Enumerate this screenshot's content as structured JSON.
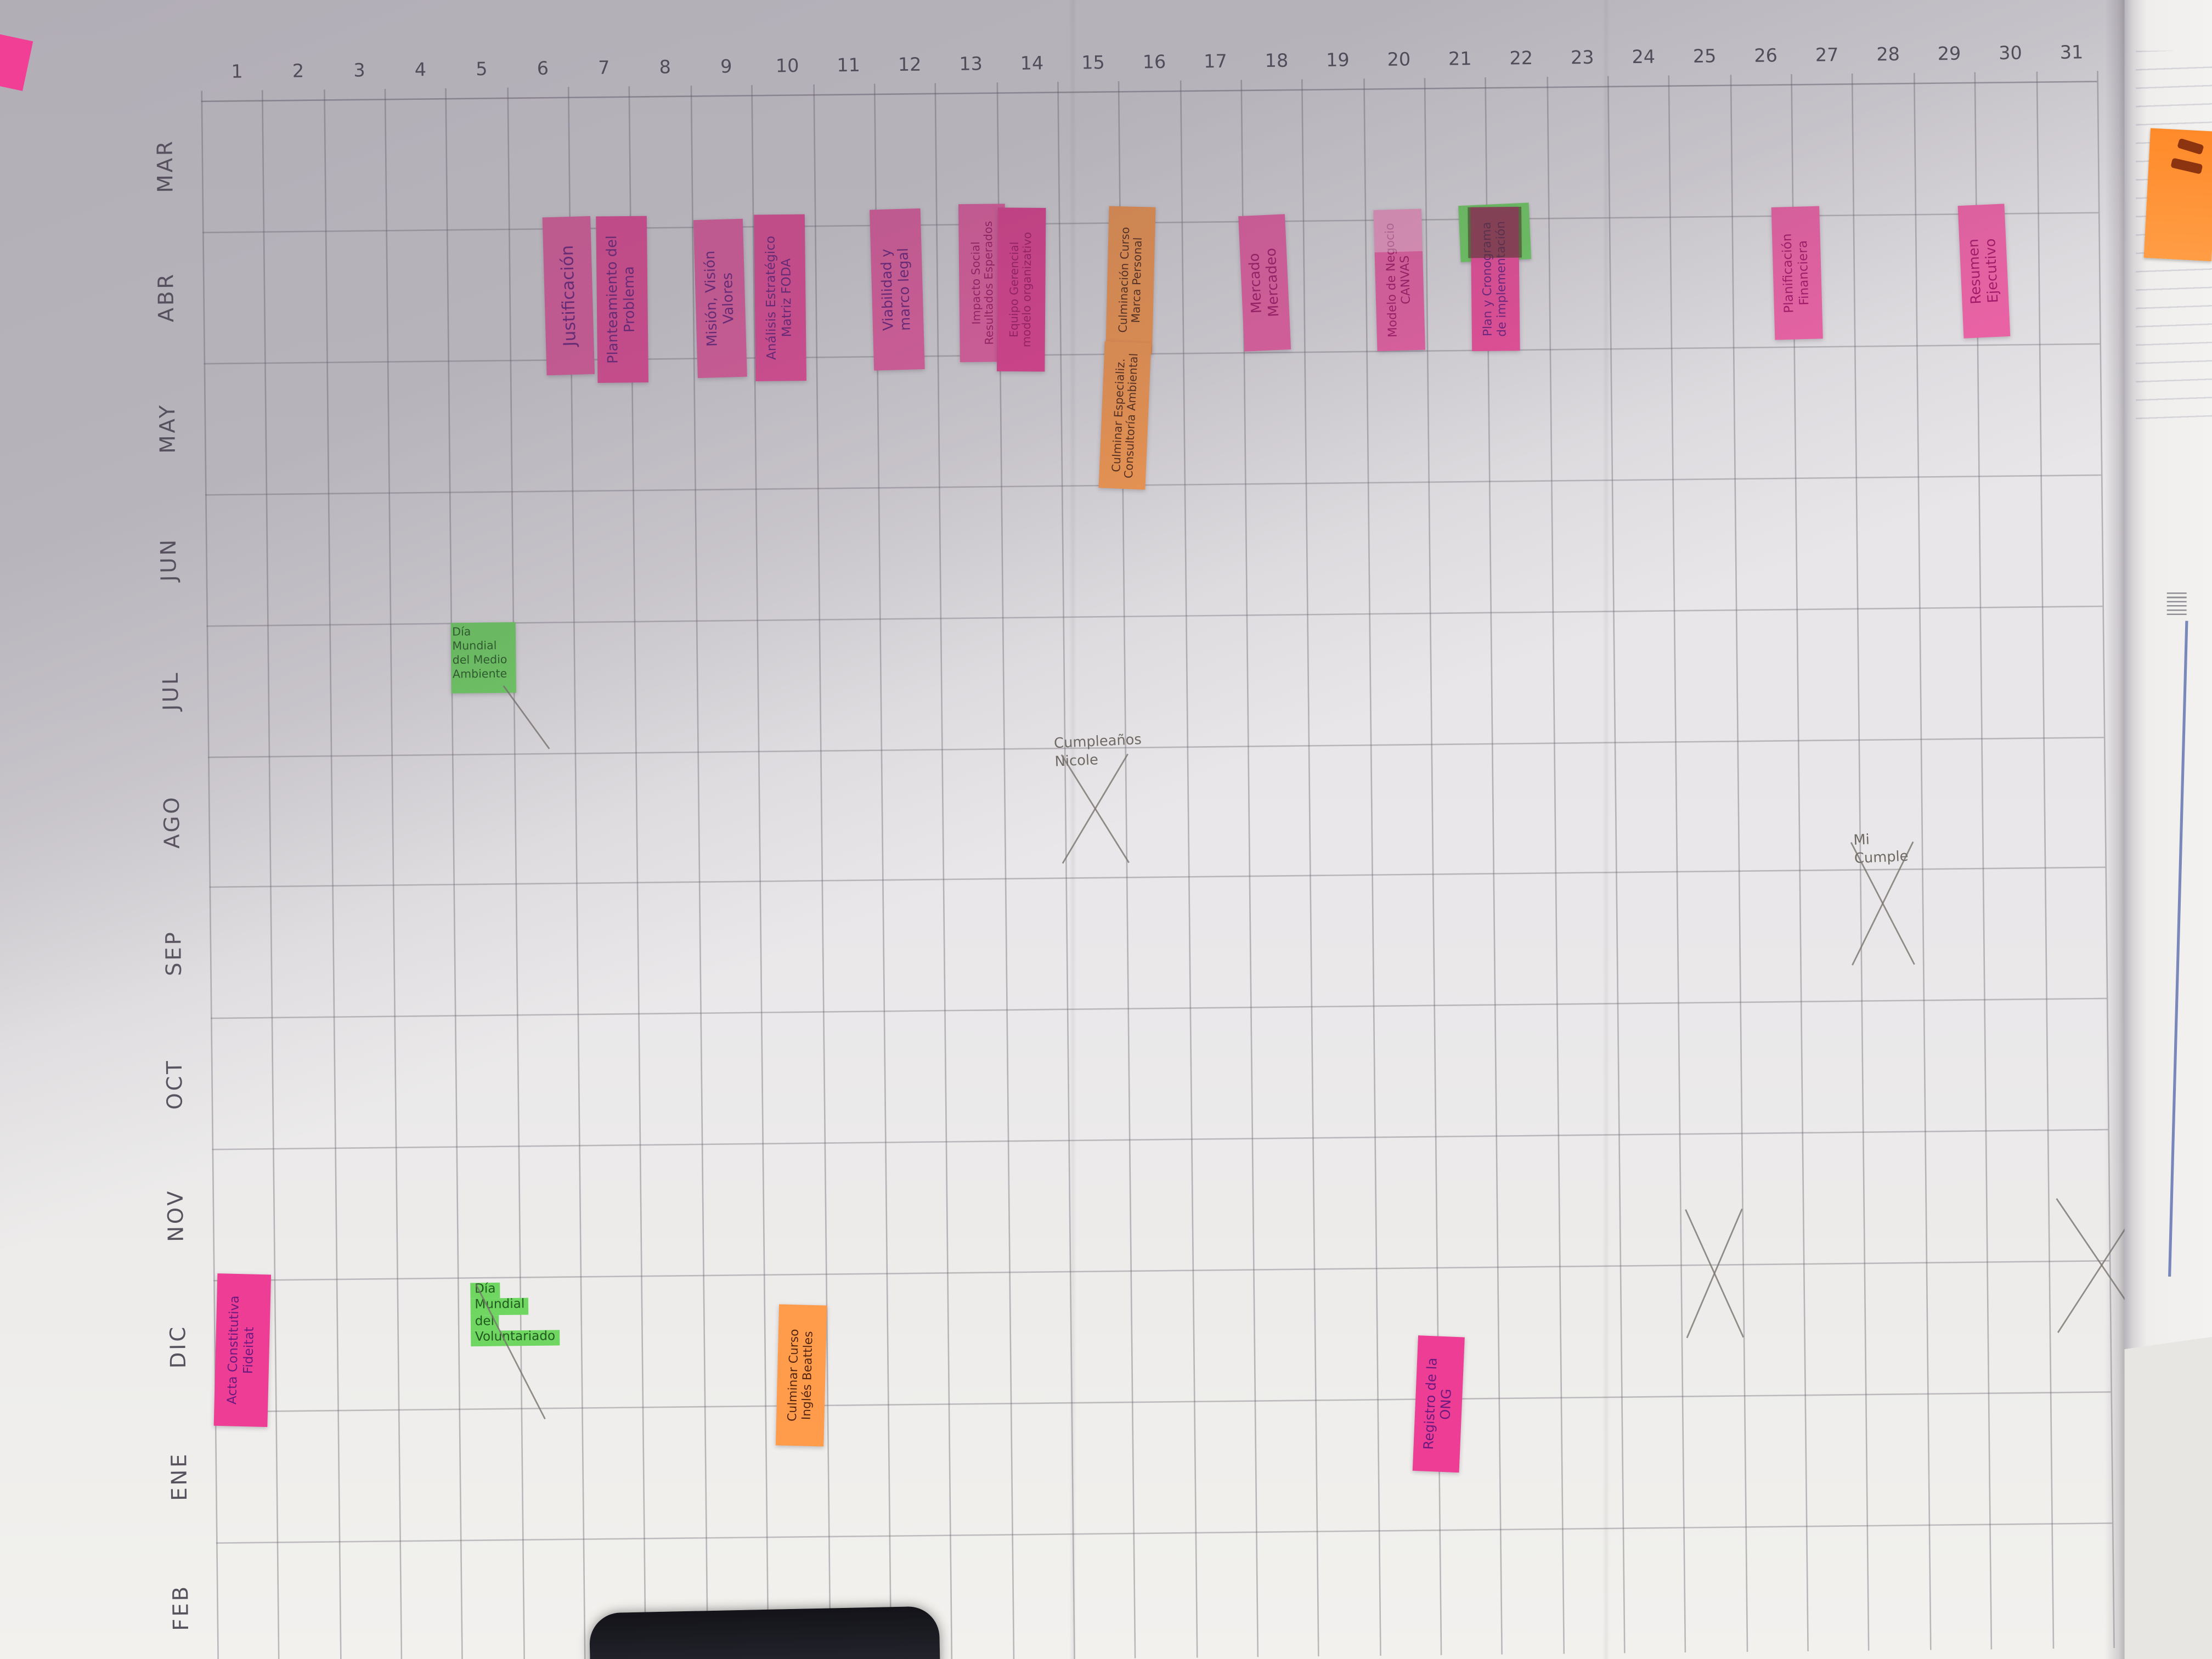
{
  "scene": {
    "description": "Photo of a hand-drawn annual wall planner (Gantt-style calendar) with sticky notes",
    "paper_color": "#e9e7ea"
  },
  "calendar": {
    "day_numbers": [
      "1",
      "2",
      "3",
      "4",
      "5",
      "6",
      "7",
      "8",
      "9",
      "10",
      "11",
      "12",
      "13",
      "14",
      "15",
      "16",
      "17",
      "18",
      "19",
      "20",
      "21",
      "22",
      "23",
      "24",
      "25",
      "26",
      "27",
      "28",
      "29",
      "30",
      "31"
    ],
    "months": [
      "MAR",
      "ABR",
      "MAY",
      "JUN",
      "JUL",
      "AGO",
      "SEP",
      "OCT",
      "NOV",
      "DIC",
      "ENE",
      "FEB"
    ]
  },
  "colors": {
    "pink_bright": "#f160a6",
    "pink_hot": "#f44b9c",
    "pink_deep": "#ee3d94",
    "orange": "#ff9c4c",
    "green": "#6fd761",
    "ink_purple": "#6d1a80",
    "ink_magenta": "#a81066",
    "ink_brown": "#53250f",
    "ink_green": "#215a1e",
    "pencil": "#7a746e"
  },
  "sticky_notes": [
    {
      "id": "justificacion",
      "month": "ABR",
      "day": 6,
      "color": "pink_bright",
      "ink": "ink_purple",
      "orientation": "rotated",
      "lines": [
        "Justificación"
      ]
    },
    {
      "id": "planteamiento",
      "month": "ABR",
      "day": 7,
      "color": "pink_hot",
      "ink": "ink_purple",
      "orientation": "rotated",
      "lines": [
        "Planteamiento del",
        "Problema"
      ]
    },
    {
      "id": "mision",
      "month": "ABR",
      "day": 9,
      "color": "pink_bright",
      "ink": "ink_purple",
      "orientation": "rotated",
      "lines": [
        "Misión, Visión",
        "Valores"
      ]
    },
    {
      "id": "foda",
      "month": "ABR",
      "day": 10,
      "color": "pink_hot",
      "ink": "ink_purple",
      "orientation": "rotated",
      "lines": [
        "Análisis Estratégico",
        "Matriz FODA"
      ]
    },
    {
      "id": "viabilidad",
      "month": "ABR",
      "day": 12,
      "color": "pink_bright",
      "ink": "ink_purple",
      "orientation": "rotated",
      "lines": [
        "Viabilidad y",
        "marco legal"
      ]
    },
    {
      "id": "impacto",
      "month": "ABR",
      "day": 13,
      "color": "pink_bright",
      "ink": "ink_magenta",
      "orientation": "rotated",
      "lines": [
        "Impacto Social",
        "Resultados Esperados"
      ]
    },
    {
      "id": "equipo",
      "month": "ABR",
      "day": 14,
      "color": "pink_deep",
      "ink": "ink_magenta",
      "orientation": "rotated",
      "lines": [
        "Equipo Gerencial",
        "modelo organizativo"
      ]
    },
    {
      "id": "marca-personal",
      "month": "ABR",
      "day": 16,
      "color": "orange",
      "ink": "ink_brown",
      "orientation": "rotated",
      "lines": [
        "Culminación Curso",
        "Marca Personal"
      ]
    },
    {
      "id": "consultoria-ambiental",
      "month": "MAY",
      "day": 15,
      "color": "orange",
      "ink": "ink_brown",
      "orientation": "rotated",
      "lines": [
        "Culminar Especializ.",
        "Consultoría Ambiental"
      ]
    },
    {
      "id": "mercado",
      "month": "ABR",
      "day": 18,
      "color": "pink_bright",
      "ink": "ink_magenta",
      "orientation": "rotated",
      "lines": [
        "Mercado",
        "Mercadeo"
      ]
    },
    {
      "id": "canvas",
      "month": "ABR",
      "day": 20,
      "color": "pink_bright",
      "ink": "ink_magenta",
      "orientation": "rotated",
      "lines": [
        "Modelo de Negocio",
        "CANVAS"
      ]
    },
    {
      "id": "plan-cronograma",
      "month": "ABR",
      "day": 22,
      "color": "pink_hot",
      "ink": "ink_purple",
      "orientation": "rotated",
      "lines": [
        "Plan y Cronograma",
        "de implementación"
      ]
    },
    {
      "id": "planificacion-financiera",
      "month": "ABR",
      "day": 26,
      "color": "pink_bright",
      "ink": "ink_magenta",
      "orientation": "rotated",
      "lines": [
        "Planificación",
        "Financiera"
      ]
    },
    {
      "id": "resumen-ejecutivo",
      "month": "ABR",
      "day": 30,
      "color": "pink_bright",
      "ink": "ink_magenta",
      "orientation": "rotated",
      "lines": [
        "Resumen",
        "Ejecutivo"
      ]
    },
    {
      "id": "medio-ambiente",
      "month": "JUN",
      "day": 5,
      "color": "green",
      "ink": "ink_green",
      "orientation": "horizontal",
      "lines": [
        "Día Mundial",
        "del Medio",
        "Ambiente"
      ]
    },
    {
      "id": "acta-constitutiva",
      "month": "DIC",
      "day": 1,
      "color": "pink_deep",
      "ink": "ink_purple",
      "orientation": "rotated",
      "lines": [
        "Acta Constitutiva",
        "Fideitat"
      ]
    },
    {
      "id": "voluntariado",
      "month": "DIC",
      "day": 5,
      "color": "green",
      "ink": "ink_green",
      "orientation": "horizontal",
      "variant": "highlighted-lines",
      "lines": [
        "Día",
        "Mundial",
        "del",
        "Voluntariado"
      ]
    },
    {
      "id": "curso-ingles",
      "month": "DIC",
      "day": 10,
      "color": "orange",
      "ink": "ink_brown",
      "orientation": "rotated",
      "lines": [
        "Culminar Curso",
        "Inglés Beattles"
      ]
    },
    {
      "id": "registro-ong",
      "month": "ENE",
      "day": 20,
      "color": "pink_deep",
      "ink": "ink_purple",
      "orientation": "rotated",
      "lines": [
        "Registro de la",
        "ONG"
      ]
    }
  ],
  "pencil_marks": [
    {
      "id": "cumple-nicole",
      "month": "JUL",
      "day": 15,
      "type": "text-with-x",
      "lines": [
        "Cumpleaños",
        "Nicole"
      ]
    },
    {
      "id": "mi-cumple",
      "month": "AGO",
      "day": 28,
      "type": "text-with-x",
      "lines": [
        "Mi",
        "Cumple"
      ]
    },
    {
      "id": "nov-x-25",
      "month": "NOV",
      "day": 25,
      "type": "x",
      "lines": []
    },
    {
      "id": "nov-x-30",
      "month": "NOV",
      "day": 30,
      "type": "x",
      "lines": []
    },
    {
      "id": "strike-medio-ambiente",
      "month": "JUN",
      "day": 5,
      "type": "diagonal",
      "lines": []
    },
    {
      "id": "strike-voluntariado",
      "month": "DIC",
      "day": 5,
      "type": "diagonal",
      "lines": []
    }
  ],
  "side_paper": {
    "tab": "orange sticky tab",
    "line": "blue vertical rule"
  }
}
